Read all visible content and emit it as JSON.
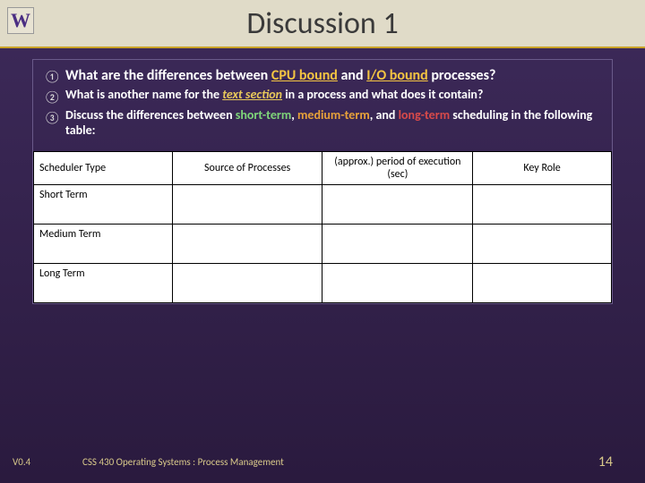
{
  "logo_letter": "W",
  "title": "Discussion 1",
  "items": [
    {
      "num": "①",
      "bold": true,
      "html": "What are the differences between <span class='ul-yellow'>CPU bound</span> and <span class='ul-yellow'>I/O bound</span> processes?"
    },
    {
      "num": "②",
      "bold": false,
      "html": "What is another name for the <span class='italic-yellow'>text section</span> in a process and what does it contain?"
    },
    {
      "num": "③",
      "bold": false,
      "html": "Discuss the differences between <span class='green'>short-term</span>, <span class='orange'>medium-term</span>, and <span class='red'>long-term</span> scheduling in the following table:"
    }
  ],
  "table": {
    "headers": [
      "Scheduler Type",
      "Source of Processes",
      "(approx.) period of execution (sec)",
      "Key Role"
    ],
    "rows": [
      "Short Term",
      "Medium Term",
      "Long Term"
    ]
  },
  "footer": {
    "version": "V0.4",
    "course": "CSS 430 Operating Systems : Process Management",
    "page": "14"
  }
}
